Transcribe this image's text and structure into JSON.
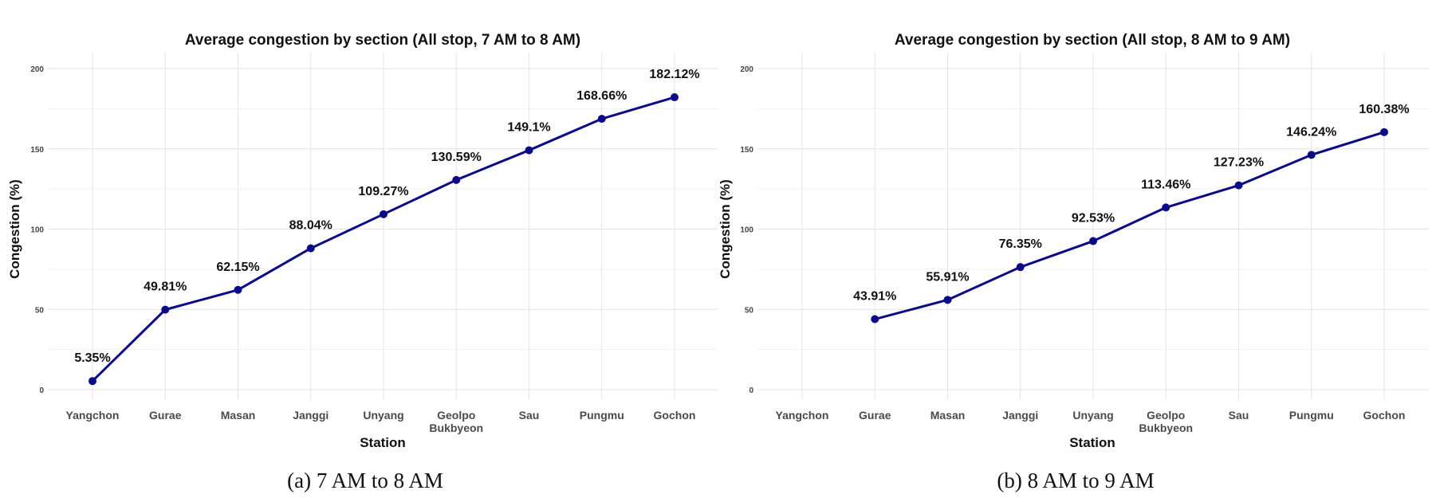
{
  "chart_data": [
    {
      "type": "line",
      "title": "Average congestion by section (All stop, 7 AM to 8 AM)",
      "xlabel": "Station",
      "ylabel": "Congestion (%)",
      "caption": "(a) 7 AM to 8 AM",
      "categories": [
        "Yangchon",
        "Gurae",
        "Masan",
        "Janggi",
        "Unyang",
        "Geolpo\nBukbyeon",
        "Sau",
        "Pungmu",
        "Gochon"
      ],
      "values": [
        5.35,
        49.81,
        62.15,
        88.04,
        109.27,
        130.59,
        149.1,
        168.66,
        182.12
      ],
      "data_labels": [
        "5.35%",
        "49.81%",
        "62.15%",
        "88.04%",
        "109.27%",
        "130.59%",
        "149.1%",
        "168.66%",
        "182.12%"
      ],
      "ylim": [
        0,
        200
      ],
      "yticks": [
        0,
        50,
        100,
        150,
        200
      ],
      "grid": true,
      "line_color": "#0a0a8a"
    },
    {
      "type": "line",
      "title": "Average congestion by section (All stop, 8 AM to 9 AM)",
      "xlabel": "Station",
      "ylabel": "Congestion (%)",
      "caption": "(b) 8 AM to 9 AM",
      "categories": [
        "Yangchon",
        "Gurae",
        "Masan",
        "Janggi",
        "Unyang",
        "Geolpo\nBukbyeon",
        "Sau",
        "Pungmu",
        "Gochon"
      ],
      "values": [
        null,
        43.91,
        55.91,
        76.35,
        92.53,
        113.46,
        127.23,
        146.24,
        160.38
      ],
      "data_labels": [
        "",
        "43.91%",
        "55.91%",
        "76.35%",
        "92.53%",
        "113.46%",
        "127.23%",
        "146.24%",
        "160.38%"
      ],
      "ylim": [
        0,
        200
      ],
      "yticks": [
        0,
        50,
        100,
        150,
        200
      ],
      "grid": true,
      "line_color": "#0a0a8a"
    }
  ]
}
